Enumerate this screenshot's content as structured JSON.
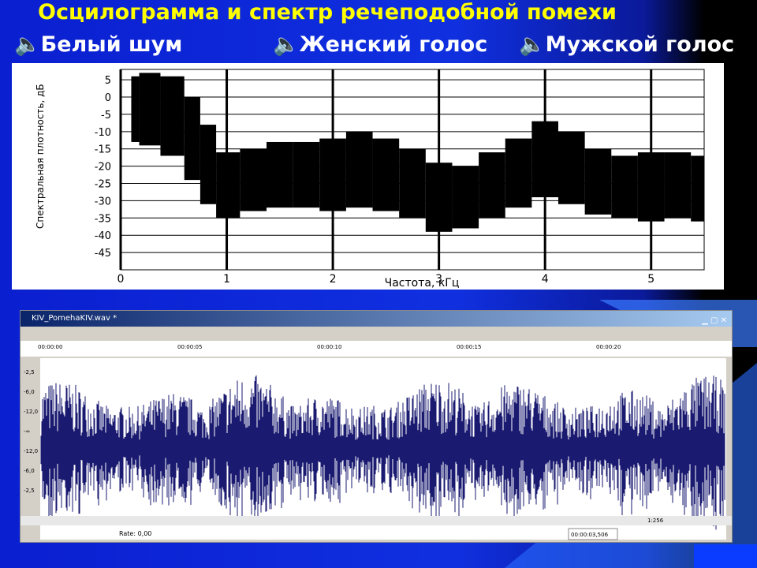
{
  "title": "Осцилограмма и спектр речеподобной помехи",
  "links": [
    "Белый шум",
    "Женский голос",
    "Мужской голос"
  ],
  "chart_data": {
    "type": "range-band",
    "x_label": "Частота, кГц",
    "y_label": "Спектральная плотность, дБ",
    "color": "#000000",
    "x": [
      0.1,
      0.25,
      0.5,
      0.7,
      0.8,
      1,
      1.25,
      1.5,
      1.75,
      2,
      2.25,
      2.5,
      2.75,
      3,
      3.25,
      3.5,
      3.75,
      4,
      4.25,
      4.5,
      4.75,
      5,
      5.25,
      5.5
    ],
    "high": [
      6,
      7,
      6,
      0,
      -8,
      -16,
      -15,
      -13,
      -13,
      -12,
      -10,
      -12,
      -15,
      -19,
      -20,
      -16,
      -12,
      -7,
      -10,
      -15,
      -17,
      -16,
      -16,
      -17
    ],
    "low": [
      -13,
      -14,
      -17,
      -24,
      -31,
      -35,
      -33,
      -32,
      -32,
      -33,
      -32,
      -33,
      -35,
      -39,
      -38,
      -35,
      -32,
      -29,
      -31,
      -34,
      -35,
      -36,
      -35,
      -36
    ],
    "xlim": [
      0,
      5.5
    ],
    "ylim": [
      -50,
      8
    ],
    "xticks": [
      0,
      1,
      2,
      3,
      4,
      5
    ],
    "yticks": [
      5,
      0,
      -5,
      -10,
      -15,
      -20,
      -25,
      -30,
      -35,
      -40,
      -45
    ],
    "grid": true
  },
  "editor": {
    "file": "KIV_PomehaKIV.wav *",
    "times": [
      "00:00:00",
      "00:00:05",
      "00:00:10",
      "00:00:15",
      "00:00:20"
    ],
    "scale": [
      "-2,5",
      "-6,0",
      "-12,0",
      "-∞",
      "-12,0",
      "-6,0",
      "-2,5"
    ],
    "rate": "Rate: 0,00",
    "position": "00:00:03,506",
    "zoom": "1:256"
  }
}
